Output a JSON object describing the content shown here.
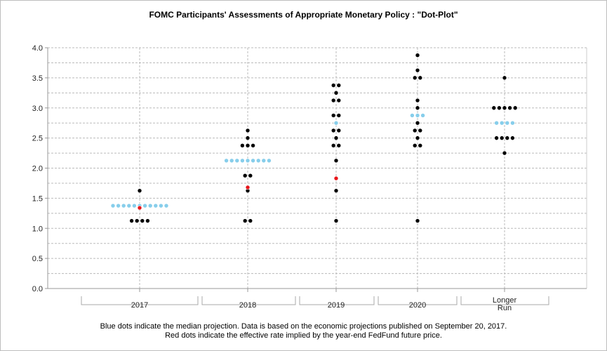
{
  "title": "FOMC Participants' Assessments of Appropriate Monetary Policy : \"Dot-Plot\"",
  "footnote": [
    "Blue dots indicate the median projection. Data is based on the economic projections published on September 20, 2017.",
    "Red dots indicate the effective rate implied by the year-end FedFund future price."
  ],
  "colors": {
    "participant": "#000000",
    "median": "#87ceeb",
    "market": "#e8161b",
    "grid": "#bbbbbb"
  },
  "chart_data": {
    "type": "scatter",
    "categories": [
      "2017",
      "2018",
      "2019",
      "2020",
      "Longer Run"
    ],
    "ylim": [
      0,
      4
    ],
    "yticks": [
      "0.0",
      "0.5",
      "1.0",
      "1.5",
      "2.0",
      "2.5",
      "3.0",
      "3.5",
      "4.0"
    ],
    "grid": true,
    "series": [
      {
        "role": "participant",
        "groups": [
          [
            [
              1.625,
              1
            ],
            [
              1.375,
              1
            ],
            [
              1.125,
              4
            ]
          ],
          [
            [
              2.625,
              1
            ],
            [
              2.5,
              1
            ],
            [
              2.375,
              3
            ],
            [
              1.875,
              2
            ],
            [
              1.625,
              1
            ],
            [
              1.125,
              2
            ]
          ],
          [
            [
              3.375,
              2
            ],
            [
              3.25,
              1
            ],
            [
              3.125,
              2
            ],
            [
              2.875,
              2
            ],
            [
              2.625,
              2
            ],
            [
              2.5,
              1
            ],
            [
              2.375,
              2
            ],
            [
              2.125,
              1
            ],
            [
              1.625,
              1
            ],
            [
              1.125,
              1
            ]
          ],
          [
            [
              3.875,
              1
            ],
            [
              3.625,
              1
            ],
            [
              3.5,
              2
            ],
            [
              3.125,
              1
            ],
            [
              3.0,
              1
            ],
            [
              2.75,
              1
            ],
            [
              2.625,
              2
            ],
            [
              2.5,
              1
            ],
            [
              2.375,
              2
            ],
            [
              1.125,
              1
            ]
          ],
          [
            [
              3.5,
              1
            ],
            [
              3.0,
              5
            ],
            [
              2.5,
              4
            ],
            [
              2.25,
              1
            ]
          ]
        ]
      },
      {
        "role": "median",
        "groups": [
          [
            [
              1.375,
              11
            ]
          ],
          [
            [
              2.125,
              9
            ]
          ],
          [
            [
              2.75,
              1
            ]
          ],
          [
            [
              2.875,
              3
            ]
          ],
          [
            [
              2.75,
              4
            ]
          ]
        ]
      },
      {
        "role": "market",
        "points": [
          [
            1.34,
            0
          ],
          [
            1.68,
            1
          ],
          [
            1.83,
            2
          ]
        ]
      }
    ]
  }
}
